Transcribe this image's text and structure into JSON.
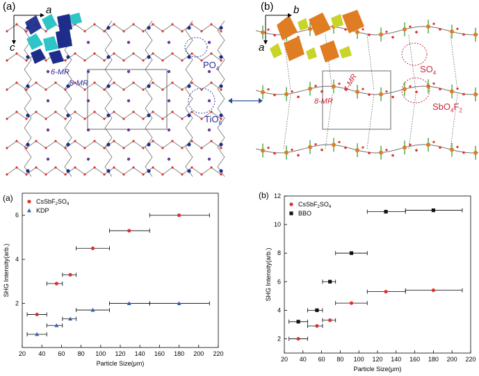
{
  "figure": {
    "panels": {
      "a_top": "(a)",
      "b_top": "(b)",
      "a_bottom": "(a)",
      "b_bottom": "(b)"
    },
    "structure_a": {
      "axis_a": "a",
      "axis_c": "c",
      "ring6": "6-MR",
      "ring8": "8-MR",
      "po4": "PO",
      "po4_sub": "4",
      "tio6": "TiO",
      "tio6_sub": "6"
    },
    "structure_b": {
      "axis_b": "b",
      "axis_a": "a",
      "ring8": "8-MR",
      "ring4": "4-MR",
      "so4": "SO",
      "so4_sub": "4",
      "sbo4f2": "SbO",
      "sbo4f2_sub1": "4",
      "sbo4f2_f": "F",
      "sbo4f2_sub2": "2"
    },
    "colors": {
      "atom_red": "#e0302a",
      "bond_gray": "#707070",
      "ti_blue": "#1e2d8a",
      "p_cyan": "#2fc4c8",
      "sb_orange": "#e07c22",
      "s_yellow": "#c8d42a",
      "f_green": "#3fa84a",
      "label_blue": "#2a2a9a",
      "label_red": "#c8283a",
      "marker_red": "#e0302a",
      "marker_blue": "#2f5fb0",
      "marker_black": "#111111"
    }
  },
  "chart_data": [
    {
      "type": "scatter",
      "panel": "(a)",
      "xlabel": "Particle Size(μm)",
      "ylabel": "SHG Intensity(arb.)",
      "xlim": [
        20,
        220
      ],
      "ylim": [
        0,
        7
      ],
      "xticks": [
        20,
        40,
        60,
        80,
        100,
        120,
        140,
        160,
        180,
        200,
        220
      ],
      "yticks": [
        2,
        4,
        6
      ],
      "legend_position": "top-left",
      "series": [
        {
          "name": "CsSbF2SO4",
          "marker": "circle",
          "x": [
            35,
            55,
            69,
            92,
            129,
            180
          ],
          "xerr_low": [
            25,
            45,
            61,
            75,
            109,
            150
          ],
          "xerr_high": [
            45,
            61,
            75,
            109,
            150,
            211
          ],
          "y": [
            1.5,
            2.9,
            3.3,
            4.5,
            5.3,
            6.0
          ]
        },
        {
          "name": "KDP",
          "marker": "triangle",
          "x": [
            35,
            55,
            69,
            92,
            129,
            180
          ],
          "xerr_low": [
            25,
            45,
            61,
            75,
            109,
            150
          ],
          "xerr_high": [
            45,
            61,
            75,
            109,
            150,
            211
          ],
          "y": [
            0.6,
            1.0,
            1.3,
            1.7,
            2.0,
            2.0
          ]
        }
      ]
    },
    {
      "type": "scatter",
      "panel": "(b)",
      "xlabel": "Particle Size(μm)",
      "ylabel": "SHG Intensity(arb.)",
      "xlim": [
        20,
        220
      ],
      "ylim": [
        1,
        12
      ],
      "xticks": [
        20,
        40,
        60,
        80,
        100,
        120,
        140,
        160,
        180,
        200,
        220
      ],
      "yticks": [
        2,
        4,
        6,
        8,
        10,
        12
      ],
      "legend_position": "top-left",
      "series": [
        {
          "name": "CsSbF2SO4",
          "marker": "circle",
          "x": [
            35,
            55,
            69,
            92,
            129,
            180
          ],
          "xerr_low": [
            25,
            45,
            61,
            75,
            109,
            150
          ],
          "xerr_high": [
            45,
            61,
            75,
            109,
            150,
            211
          ],
          "y": [
            2.0,
            2.9,
            3.3,
            4.5,
            5.3,
            5.4
          ]
        },
        {
          "name": "BBO",
          "marker": "square",
          "x": [
            35,
            55,
            69,
            92,
            129,
            180
          ],
          "xerr_low": [
            25,
            45,
            61,
            75,
            109,
            150
          ],
          "xerr_high": [
            45,
            61,
            75,
            109,
            150,
            211
          ],
          "y": [
            3.2,
            4.0,
            6.0,
            8.0,
            10.9,
            11.0
          ]
        }
      ]
    }
  ]
}
